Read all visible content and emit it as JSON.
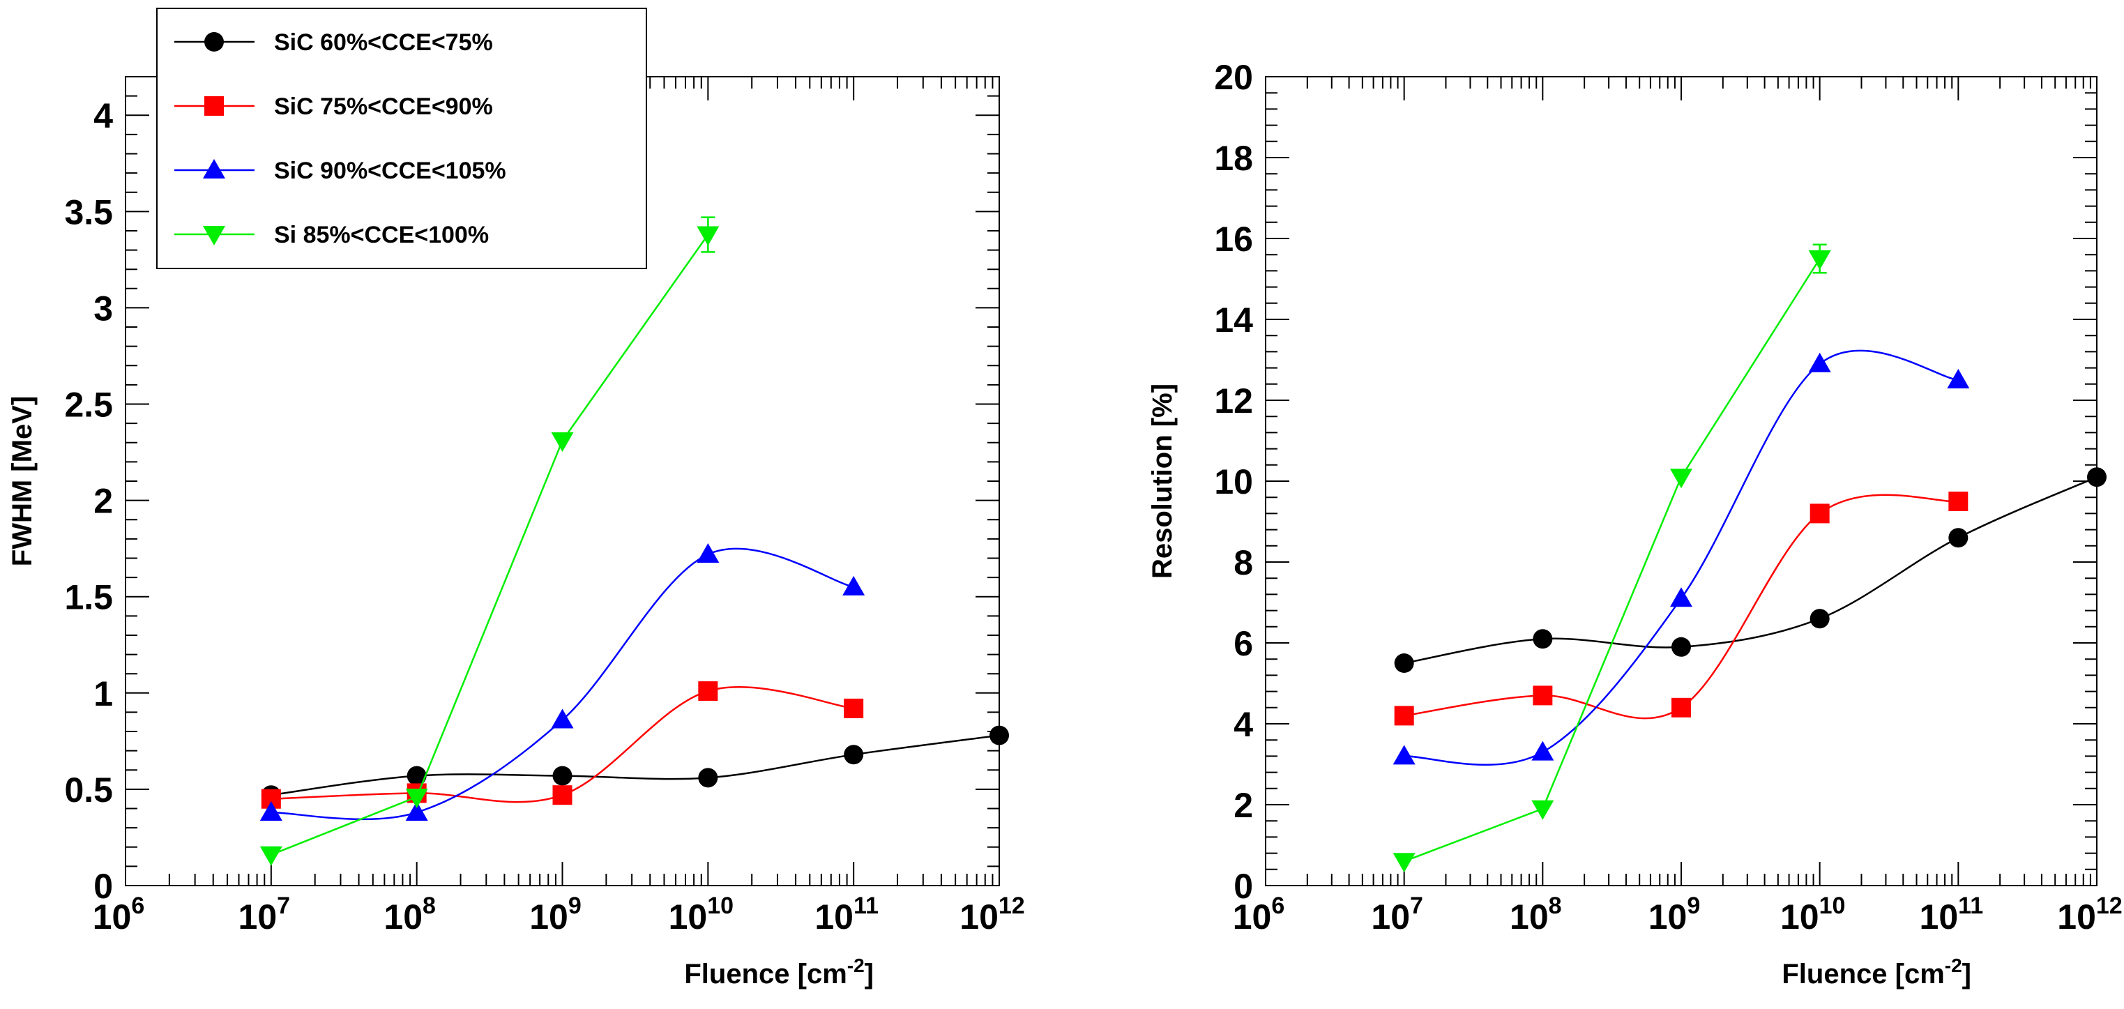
{
  "chart_data": [
    {
      "type": "line",
      "xscale": "log10",
      "xlim_exp": [
        6,
        12
      ],
      "ylim": [
        0,
        4.2
      ],
      "yticks": [
        "0",
        "0.5",
        "1",
        "1.5",
        "2",
        "2.5",
        "3",
        "3.5",
        "4"
      ],
      "yticks_values": [
        0,
        0.5,
        1,
        1.5,
        2,
        2.5,
        3,
        3.5,
        4
      ],
      "xticks_exp": [
        "6",
        "7",
        "8",
        "9",
        "10",
        "11",
        "12"
      ],
      "xtick_base": "10",
      "xlabel": "Fluence [cm",
      "xlabel_sup": "-2",
      "xlabel_end": "]",
      "ylabel": "FWHM [MeV]",
      "series": [
        {
          "name": "SiC 60%<CCE<75%",
          "color": "#000000",
          "marker": "circle",
          "smooth": true,
          "x_exp": [
            7,
            8,
            9,
            10,
            11,
            12
          ],
          "y": [
            0.47,
            0.57,
            0.57,
            0.56,
            0.68,
            0.78
          ]
        },
        {
          "name": "SiC 75%<CCE<90%",
          "color": "#ff0000",
          "marker": "square",
          "smooth": true,
          "x_exp": [
            7,
            8,
            9,
            10,
            11
          ],
          "y": [
            0.45,
            0.48,
            0.47,
            1.01,
            0.92
          ]
        },
        {
          "name": "SiC 90%<CCE<105%",
          "color": "#0000ff",
          "marker": "triangle-up",
          "smooth": true,
          "x_exp": [
            7,
            8,
            9,
            10,
            11
          ],
          "y": [
            0.38,
            0.38,
            0.86,
            1.72,
            1.55
          ]
        },
        {
          "name": "Si 85%<CCE<100%",
          "color": "#00ee00",
          "marker": "triangle-down",
          "smooth": false,
          "x_exp": [
            7,
            8,
            9,
            10
          ],
          "y": [
            0.16,
            0.46,
            2.31,
            3.38
          ],
          "yerr": [
            0,
            0,
            0,
            0.09
          ]
        }
      ],
      "legend": {
        "placement": "top-left",
        "entries": [
          "SiC 60%<CCE<75%",
          "SiC 75%<CCE<90%",
          "SiC 90%<CCE<105%",
          "Si 85%<CCE<100%"
        ]
      }
    },
    {
      "type": "line",
      "xscale": "log10",
      "xlim_exp": [
        6,
        12
      ],
      "ylim": [
        0,
        20
      ],
      "yticks": [
        "0",
        "2",
        "4",
        "6",
        "8",
        "10",
        "12",
        "14",
        "16",
        "18",
        "20"
      ],
      "yticks_values": [
        0,
        2,
        4,
        6,
        8,
        10,
        12,
        14,
        16,
        18,
        20
      ],
      "xticks_exp": [
        "6",
        "7",
        "8",
        "9",
        "10",
        "11",
        "12"
      ],
      "xtick_base": "10",
      "xlabel": "Fluence [cm",
      "xlabel_sup": "-2",
      "xlabel_end": "]",
      "ylabel": "Resolution [%]",
      "series": [
        {
          "name": "SiC 60%<CCE<75%",
          "color": "#000000",
          "marker": "circle",
          "smooth": true,
          "x_exp": [
            7,
            8,
            9,
            10,
            11,
            12
          ],
          "y": [
            5.5,
            6.1,
            5.9,
            6.6,
            8.6,
            10.1
          ]
        },
        {
          "name": "SiC 75%<CCE<90%",
          "color": "#ff0000",
          "marker": "square",
          "smooth": true,
          "x_exp": [
            7,
            8,
            9,
            10,
            11
          ],
          "y": [
            4.2,
            4.7,
            4.4,
            9.2,
            9.5
          ]
        },
        {
          "name": "SiC 90%<CCE<105%",
          "color": "#0000ff",
          "marker": "triangle-up",
          "smooth": true,
          "x_exp": [
            7,
            8,
            9,
            10,
            11
          ],
          "y": [
            3.2,
            3.3,
            7.1,
            12.9,
            12.5
          ]
        },
        {
          "name": "Si 85%<CCE<100%",
          "color": "#00ee00",
          "marker": "triangle-down",
          "smooth": false,
          "x_exp": [
            7,
            8,
            9,
            10
          ],
          "y": [
            0.6,
            1.9,
            10.1,
            15.5
          ],
          "yerr": [
            0,
            0,
            0,
            0.35
          ]
        }
      ]
    }
  ]
}
